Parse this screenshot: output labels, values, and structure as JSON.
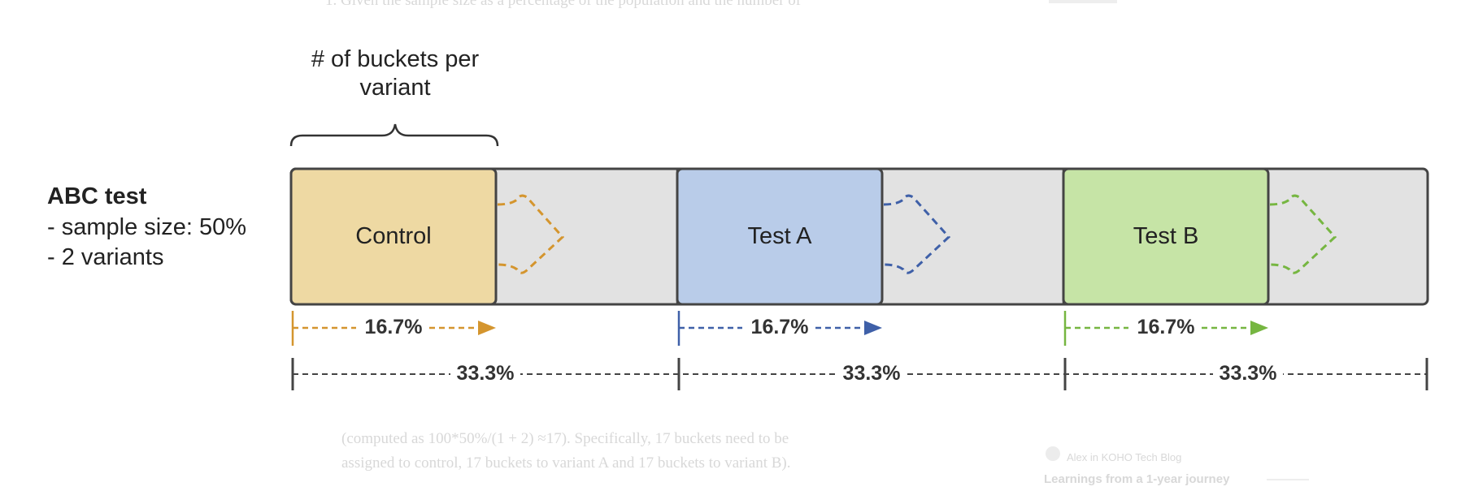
{
  "background_text": {
    "top": "1. Given the sample size as a percentage of the population and the number of",
    "bottom_1": "(computed as 100*50%/(1 + 2) ≈17). Specifically, 17 buckets need to be",
    "bottom_2": "assigned to control, 17 buckets to variant A and 17 buckets to variant B).",
    "card_source": "Alex in KOHO Tech Blog",
    "card_title": "Learnings from a 1-year journey"
  },
  "diagram": {
    "bucket_label": "# of buckets per variant",
    "test_title": "ABC test",
    "test_details": [
      "- sample size: 50%",
      "- 2 variants"
    ],
    "variants": [
      {
        "name": "Control",
        "color": "#eed9a3",
        "accent": "#d4952e",
        "bucket_share": "16.7%",
        "section_share": "33.3%"
      },
      {
        "name": "Test A",
        "color": "#b9cce9",
        "accent": "#3f60a8",
        "bucket_share": "16.7%",
        "section_share": "33.3%"
      },
      {
        "name": "Test B",
        "color": "#c6e4a6",
        "accent": "#76b641",
        "bucket_share": "16.7%",
        "section_share": "33.3%"
      }
    ],
    "empty_color": "#e2e2e2"
  }
}
